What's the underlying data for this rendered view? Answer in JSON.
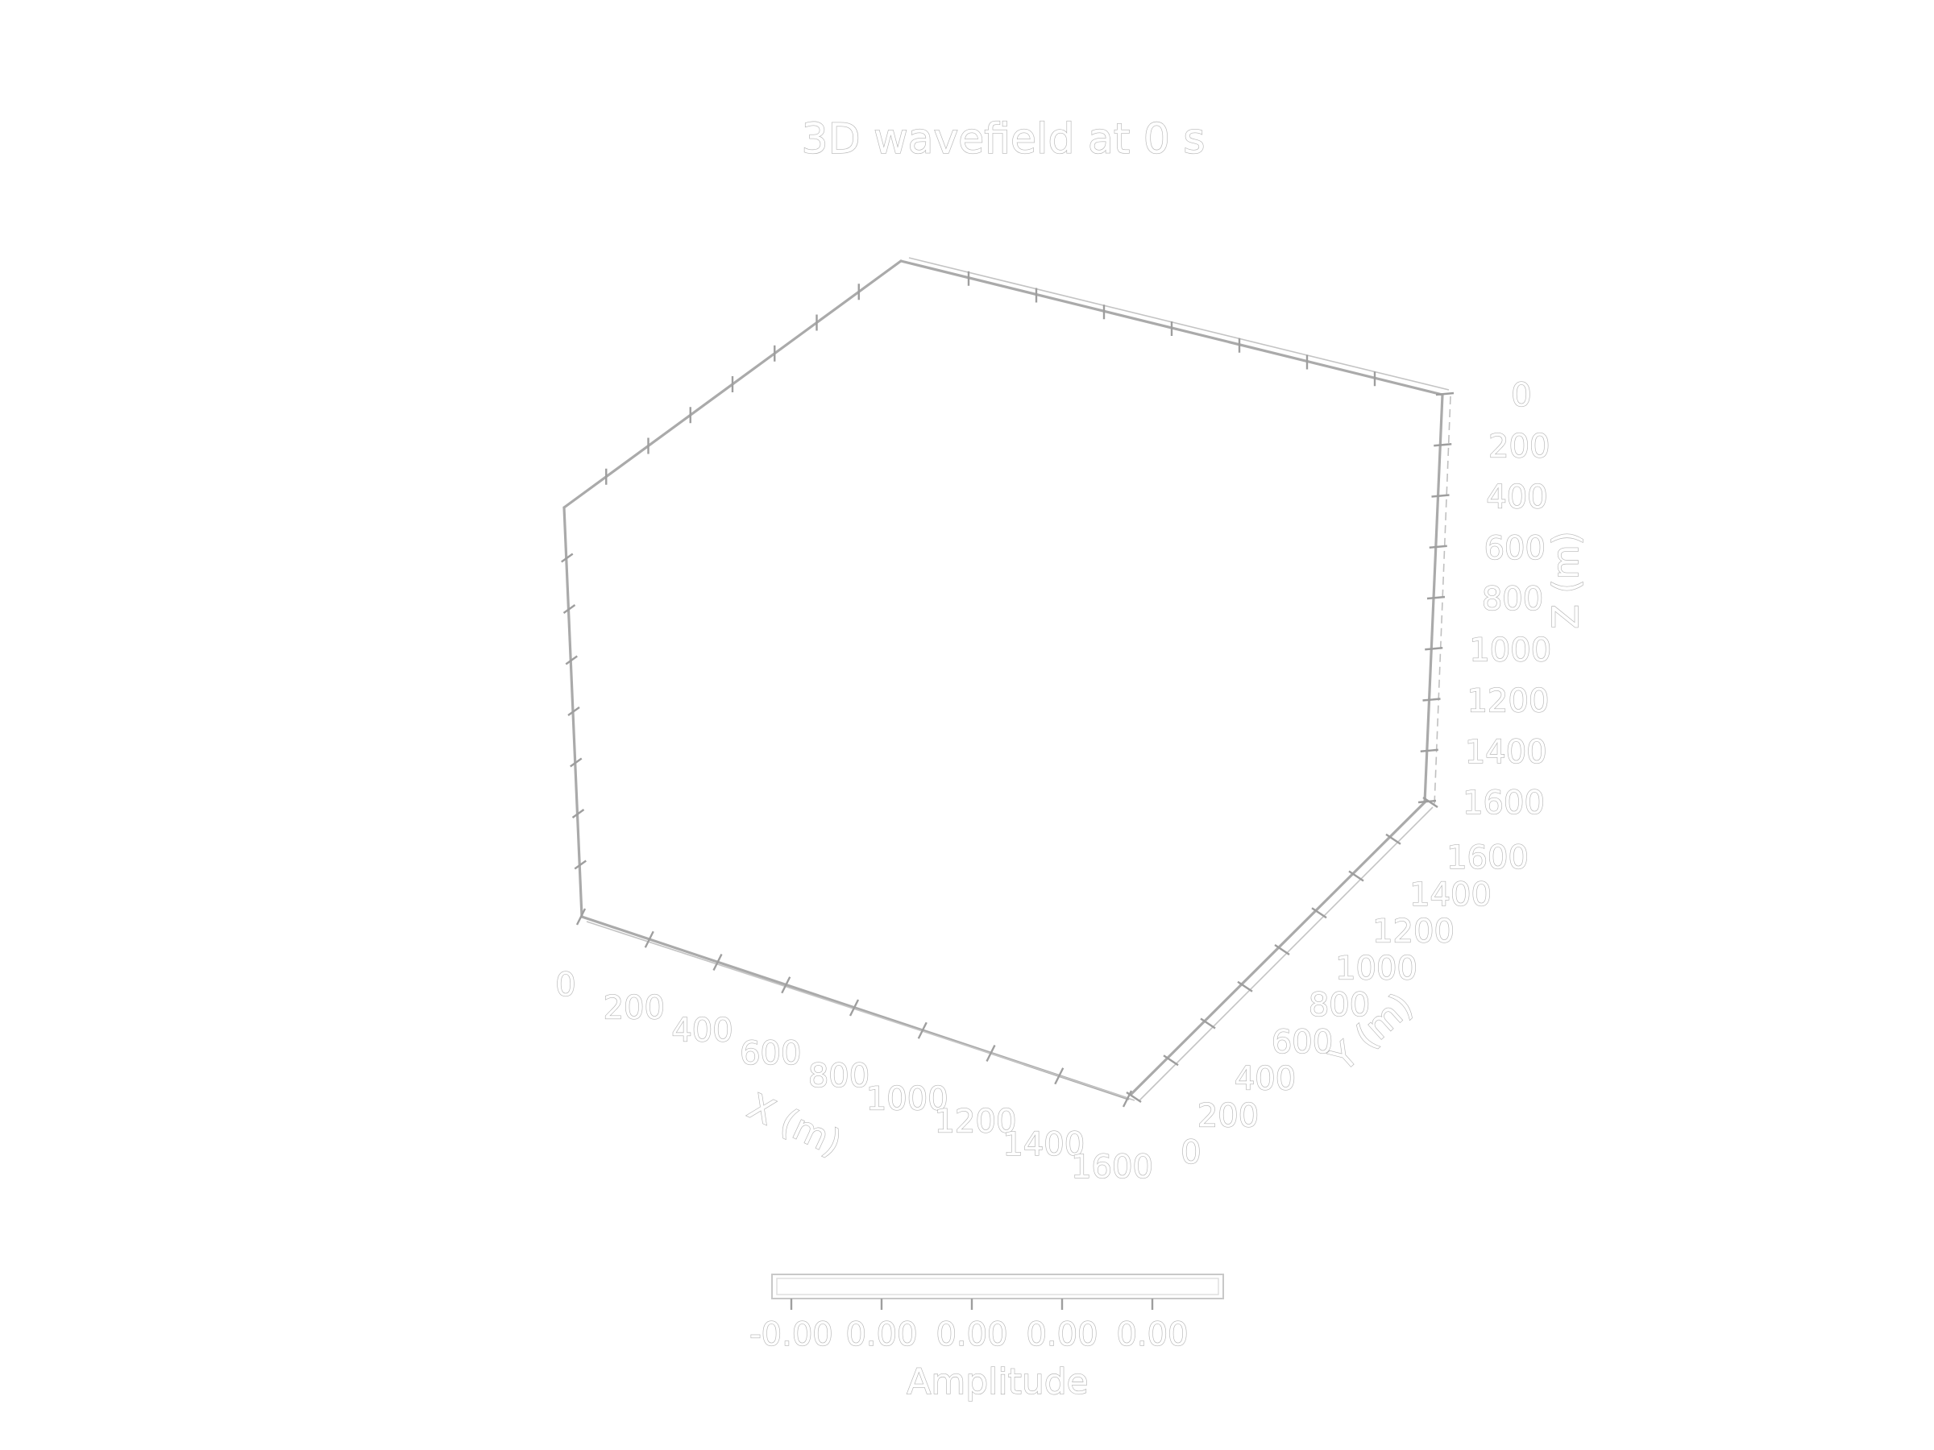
{
  "chart_data": {
    "type": "scatter",
    "projection": "3d",
    "title": "3D wavefield at 0 s",
    "xlabel": "X (m)",
    "ylabel": "Y (m)",
    "zlabel": "Z (m)",
    "xlim": [
      0,
      1600
    ],
    "ylim": [
      0,
      1600
    ],
    "zlim": [
      1600,
      0
    ],
    "zaxis_inverted": true,
    "x_ticks": [
      "0",
      "200",
      "400",
      "600",
      "800",
      "1000",
      "1200",
      "1400",
      "1600"
    ],
    "y_ticks": [
      "0",
      "200",
      "400",
      "600",
      "800",
      "1000",
      "1200",
      "1400",
      "1600"
    ],
    "z_ticks": [
      "0",
      "200",
      "400",
      "600",
      "800",
      "1000",
      "1200",
      "1400",
      "1600"
    ],
    "points": [],
    "grid": false,
    "colorbar": {
      "label": "Amplitude",
      "orientation": "horizontal",
      "ticks": [
        "-0.00",
        "0.00",
        "0.00",
        "0.00",
        "0.00"
      ]
    }
  }
}
